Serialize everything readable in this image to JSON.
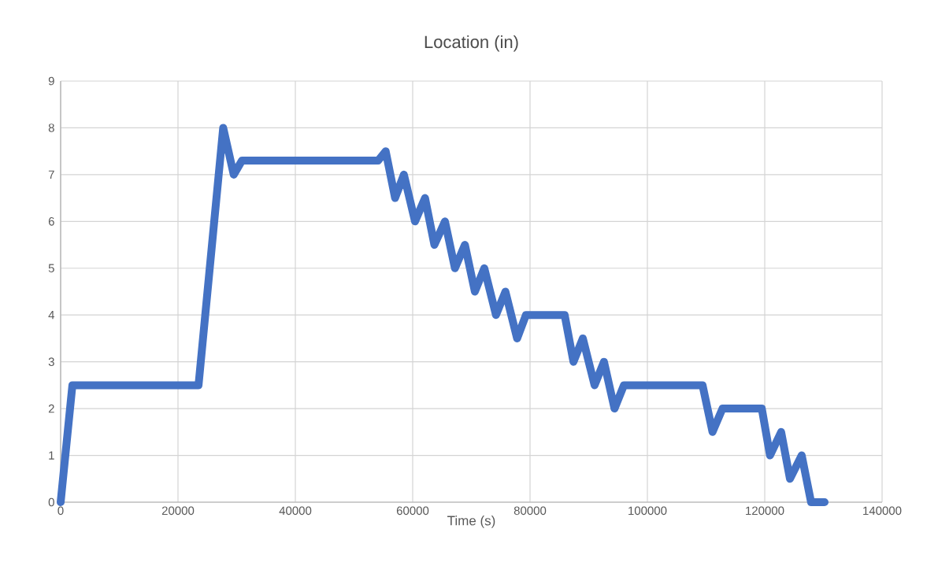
{
  "chart_data": {
    "type": "line",
    "title": "Location (in)",
    "xlabel": "Time (s)",
    "x": [
      0,
      2000,
      23500,
      27700,
      29500,
      30900,
      54100,
      55400,
      57000,
      58500,
      60400,
      62100,
      63700,
      65500,
      67200,
      68900,
      70600,
      72200,
      74200,
      75800,
      77800,
      79300,
      85900,
      87400,
      89000,
      91000,
      92600,
      94400,
      96000,
      109400,
      111100,
      112800,
      119500,
      120900,
      122800,
      124300,
      126300,
      127900,
      130200
    ],
    "series": [
      {
        "color": "#4472c4",
        "values": [
          0,
          2.5,
          2.5,
          8,
          7,
          7.3,
          7.3,
          7.5,
          6.5,
          7,
          6,
          6.5,
          5.5,
          6,
          5,
          5.5,
          4.5,
          5,
          4,
          4.5,
          3.5,
          4,
          4,
          3,
          3.5,
          2.5,
          3,
          2,
          2.5,
          2.5,
          1.5,
          2,
          2,
          1,
          1.5,
          0.5,
          1,
          0,
          0
        ]
      }
    ],
    "xlim": [
      0,
      140000
    ],
    "xticks": [
      0,
      20000,
      40000,
      60000,
      80000,
      100000,
      120000,
      140000
    ],
    "ylim": [
      0,
      9
    ],
    "yticks": [
      0,
      1,
      2,
      3,
      4,
      5,
      6,
      7,
      8,
      9
    ],
    "grid": true,
    "marker": "none",
    "line_style": "solid"
  }
}
